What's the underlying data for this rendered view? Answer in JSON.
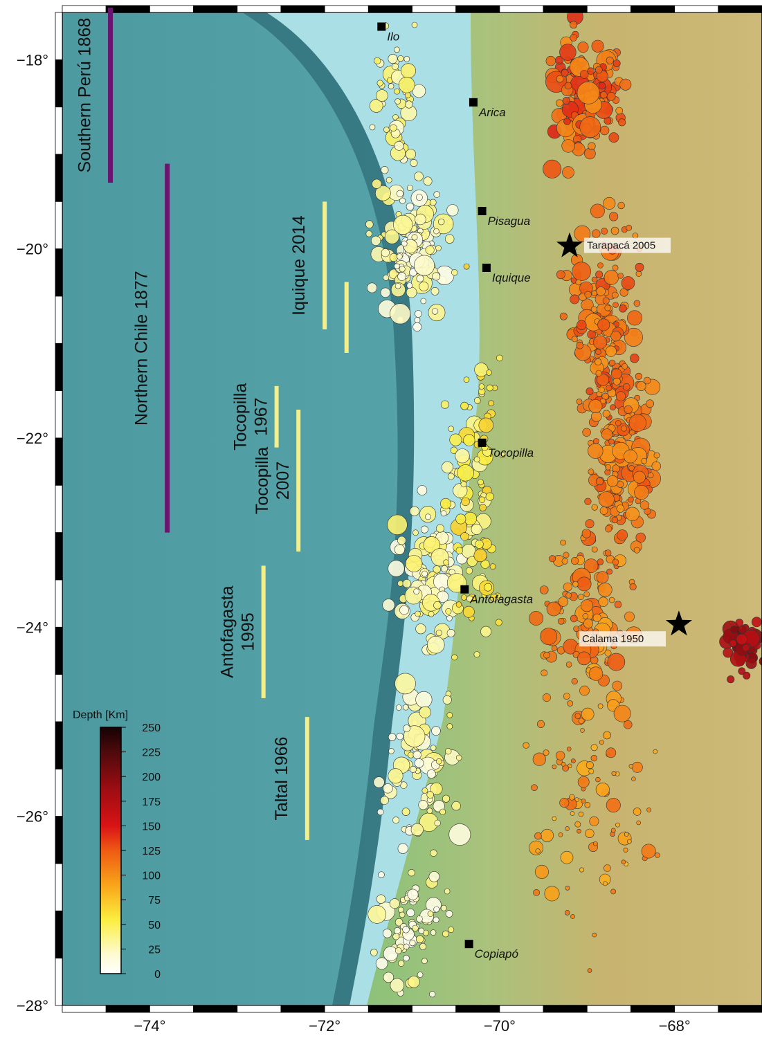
{
  "map": {
    "lon_range": [
      -75.0,
      -67.0
    ],
    "lat_range": [
      -28.0,
      -17.5
    ],
    "x_ticks": [
      {
        "value": -74,
        "label": "−74°"
      },
      {
        "value": -72,
        "label": "−72°"
      },
      {
        "value": -70,
        "label": "−70°"
      },
      {
        "value": -68,
        "label": "−68°"
      }
    ],
    "y_ticks": [
      {
        "value": -18,
        "label": "−18°"
      },
      {
        "value": -20,
        "label": "−20°"
      },
      {
        "value": -22,
        "label": "−22°"
      },
      {
        "value": -24,
        "label": "−24°"
      },
      {
        "value": -26,
        "label": "−26°"
      },
      {
        "value": -28,
        "label": "−28°"
      }
    ],
    "colors": {
      "ocean": "#4e9ea3",
      "shelf": "#b6e3ea",
      "land_coast": "#8cbf7a",
      "land_inland": "#c9b774",
      "historic_rupture": "#6a1670",
      "recent_rupture": "#f4ef8a"
    }
  },
  "ruptures": [
    {
      "name": "Southern Perú 1868",
      "lines": [
        "Southern Perú 1868"
      ],
      "type": "historic",
      "lon": -74.45,
      "lat_top": -17.45,
      "lat_bottom": -19.3
    },
    {
      "name": "Northern Chile 1877",
      "lines": [
        "Northern Chile 1877"
      ],
      "type": "historic",
      "lon": -73.8,
      "lat_top": -19.1,
      "lat_bottom": -23.0
    },
    {
      "name": "Iquique 2014",
      "lines": [
        "Iquique 2014"
      ],
      "type": "recent",
      "lon": -72.0,
      "lat_top": -19.5,
      "lat_bottom": -20.85
    },
    {
      "name": "Iquique 2014 (second segment)",
      "lines": [],
      "type": "recent",
      "lon": -71.75,
      "lat_top": -20.35,
      "lat_bottom": -21.1
    },
    {
      "name": "Tocopilla 1967",
      "lines": [
        "Tocopilla",
        "1967"
      ],
      "type": "recent",
      "lon": -72.55,
      "lat_top": -21.45,
      "lat_bottom": -22.1
    },
    {
      "name": "Tocopilla 2007",
      "lines": [
        "Tocopilla",
        "2007"
      ],
      "type": "recent",
      "lon": -72.3,
      "lat_top": -21.7,
      "lat_bottom": -23.2
    },
    {
      "name": "Antofagasta 1995",
      "lines": [
        "Antofagasta",
        "1995"
      ],
      "type": "recent",
      "lon": -72.7,
      "lat_top": -23.35,
      "lat_bottom": -24.75
    },
    {
      "name": "Taltal 1966",
      "lines": [
        "Taltal 1966"
      ],
      "type": "recent",
      "lon": -72.2,
      "lat_top": -24.95,
      "lat_bottom": -26.25
    }
  ],
  "cities": [
    {
      "name": "Ilo",
      "lon": -71.35,
      "lat": -17.65
    },
    {
      "name": "Arica",
      "lon": -70.3,
      "lat": -18.45
    },
    {
      "name": "Pisagua",
      "lon": -70.2,
      "lat": -19.6
    },
    {
      "name": "Iquique",
      "lon": -70.15,
      "lat": -20.2
    },
    {
      "name": "Tocopilla",
      "lon": -70.2,
      "lat": -22.05
    },
    {
      "name": "Antofagasta",
      "lon": -70.4,
      "lat": -23.6
    },
    {
      "name": "Copiapó",
      "lon": -70.35,
      "lat": -27.35
    }
  ],
  "earthquakes": [
    {
      "name": "Tarapacá 2005",
      "lon": -69.2,
      "lat": -19.97
    },
    {
      "name": "Calama 1950",
      "lon": -67.95,
      "lat": -23.97
    }
  ],
  "colorbar": {
    "title": "Depth [Km]",
    "ticks": [
      "250",
      "225",
      "200",
      "175",
      "150",
      "125",
      "100",
      "75",
      "50",
      "25",
      "0"
    ],
    "min": 0,
    "max": 250
  }
}
